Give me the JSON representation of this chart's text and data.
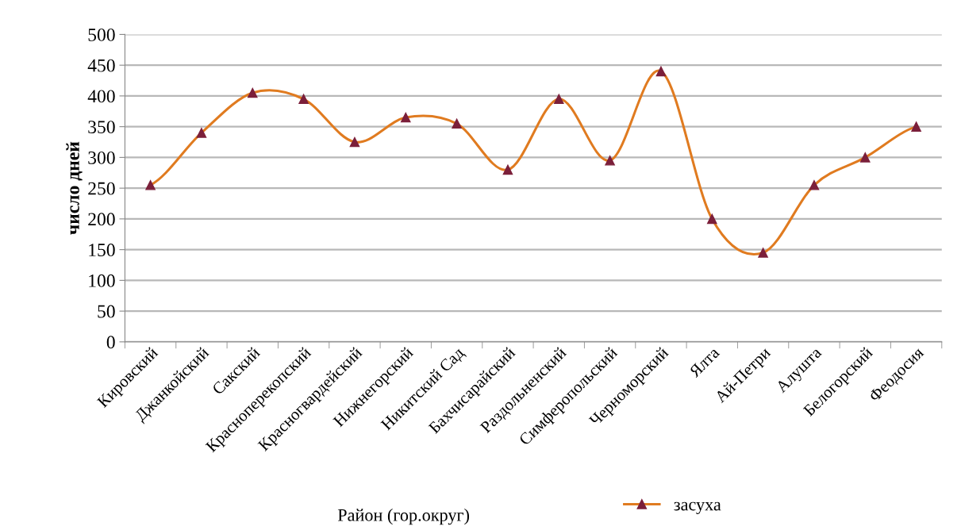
{
  "chart_data": {
    "type": "line",
    "xlabel": "Район (гор.округ)",
    "ylabel": "число дней",
    "categories": [
      "Кировский",
      "Джанкойский",
      "Сакский",
      "Красноперекопский",
      "Красногвардейский",
      "Нижнегорский",
      "Никитский Сад",
      "Бахчисарайский",
      "Раздольненский",
      "Симферопольский",
      "Черноморский",
      "Ялта",
      "Ай-Петри",
      "Алушта",
      "Белогорский",
      "Феодосия"
    ],
    "series": [
      {
        "name": "засуха",
        "color": "#e07b20",
        "values": [
          255,
          340,
          405,
          395,
          325,
          365,
          355,
          280,
          395,
          295,
          440,
          200,
          145,
          255,
          300,
          350
        ]
      }
    ],
    "ylim": [
      0,
      500
    ],
    "yticks": [
      0,
      50,
      100,
      150,
      200,
      250,
      300,
      350,
      400,
      450,
      500
    ],
    "grid": "y",
    "legend": "bottom",
    "marker": "triangle",
    "line_style": "solid"
  }
}
